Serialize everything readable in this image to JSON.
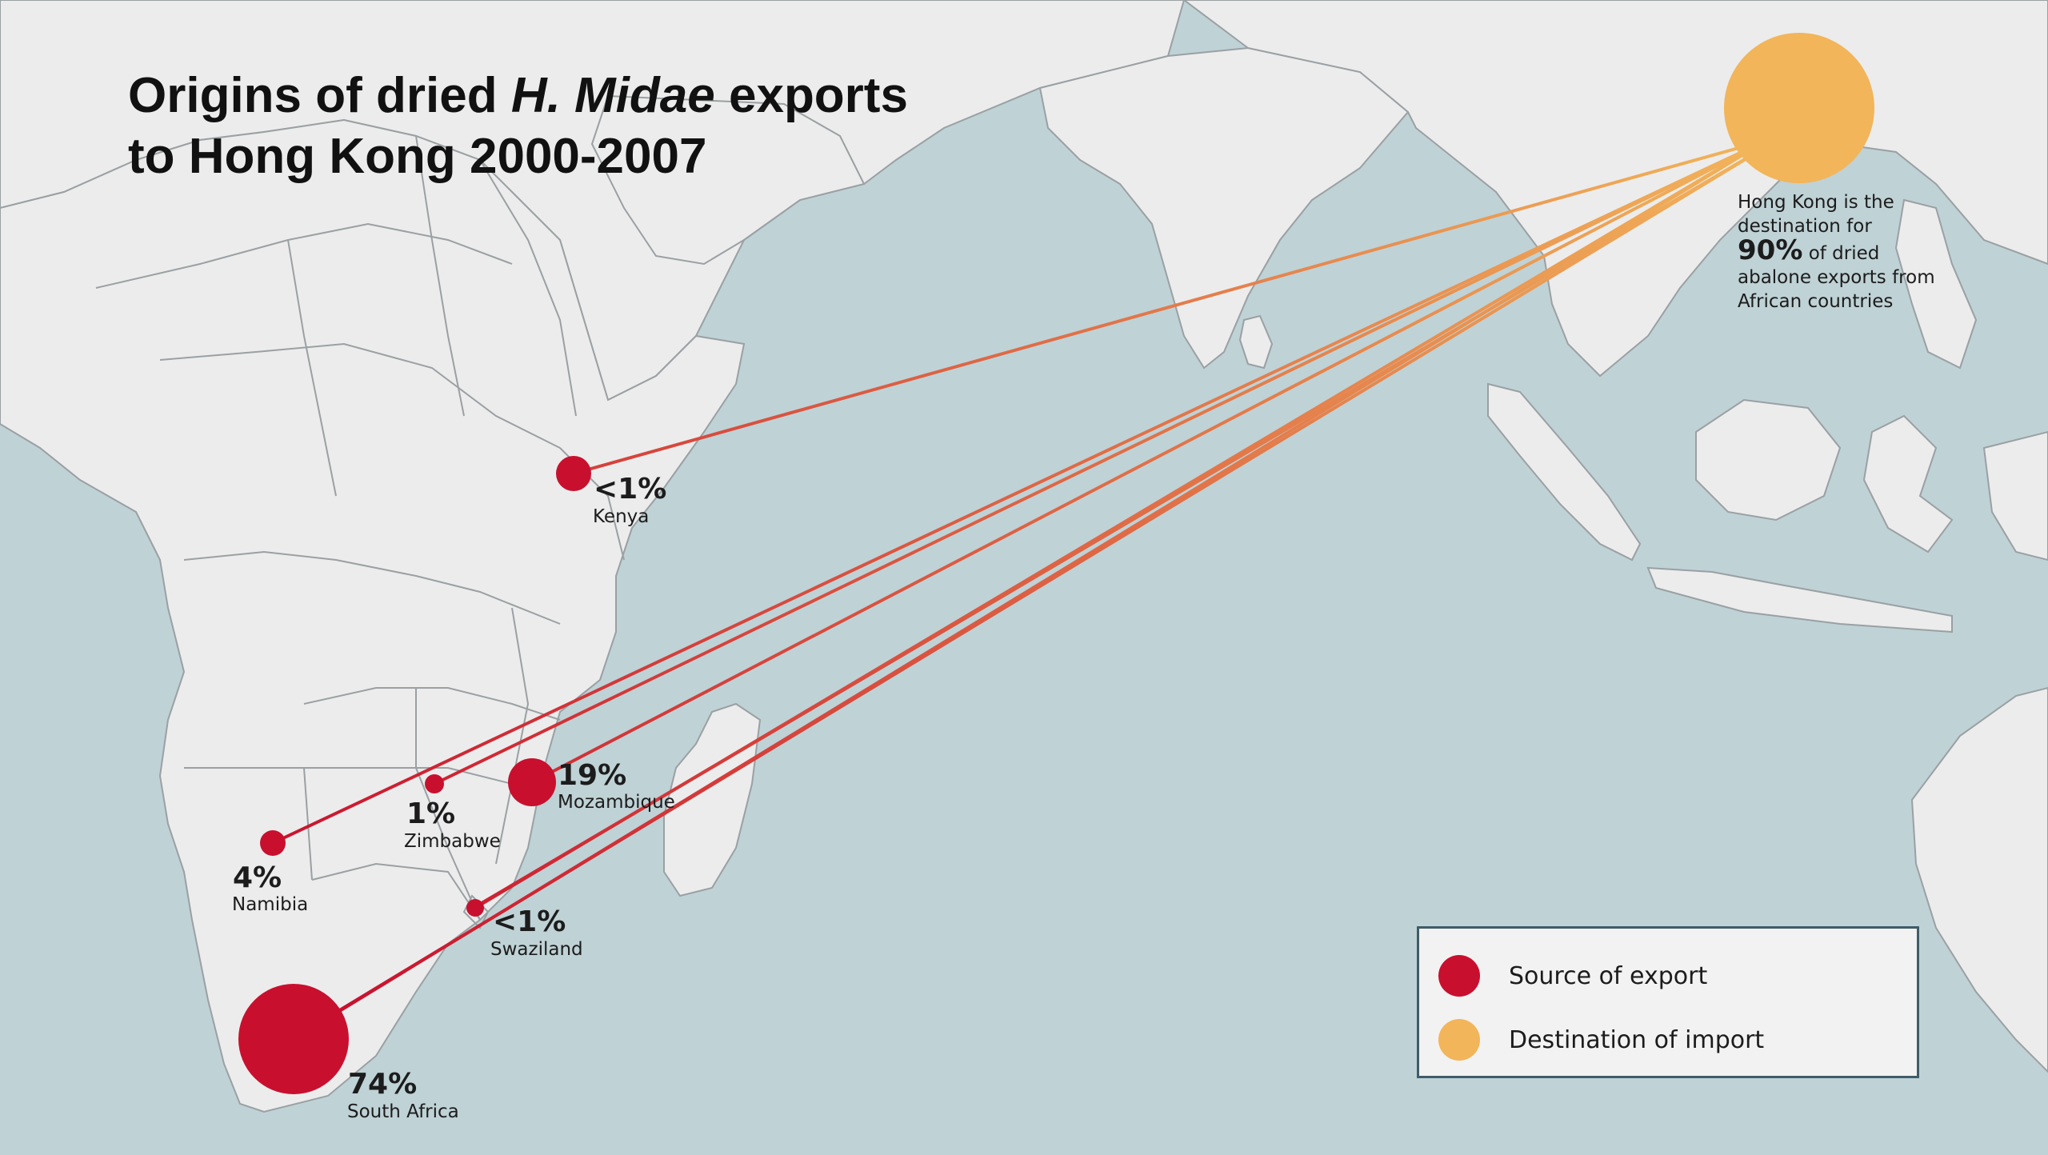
{
  "title": {
    "line1_prefix": "Origins of dried ",
    "line1_italic": "H. Midae",
    "line1_suffix": " exports",
    "line2": "to Hong Kong 2000-2007"
  },
  "colors": {
    "ocean": "#bfd2d6",
    "land": "#ececec",
    "source": "#c8102e",
    "destination": "#f2b55a"
  },
  "destination": {
    "name": "Hong Kong",
    "note_line1": "Hong Kong is the",
    "note_line2": "destination for",
    "note_pct": "90%",
    "note_line3": " of dried",
    "note_line4": "abalone exports from",
    "note_line5": "African countries"
  },
  "sources": [
    {
      "country": "Kenya",
      "pct": "<1%",
      "share": 0.5
    },
    {
      "country": "Mozambique",
      "pct": "19%",
      "share": 19
    },
    {
      "country": "Zimbabwe",
      "pct": "1%",
      "share": 1
    },
    {
      "country": "Namibia",
      "pct": "4%",
      "share": 4
    },
    {
      "country": "Swaziland",
      "pct": "<1%",
      "share": 0.5
    },
    {
      "country": "South Africa",
      "pct": "74%",
      "share": 74
    }
  ],
  "legend": {
    "source_label": "Source of export",
    "destination_label": "Destination of import"
  }
}
